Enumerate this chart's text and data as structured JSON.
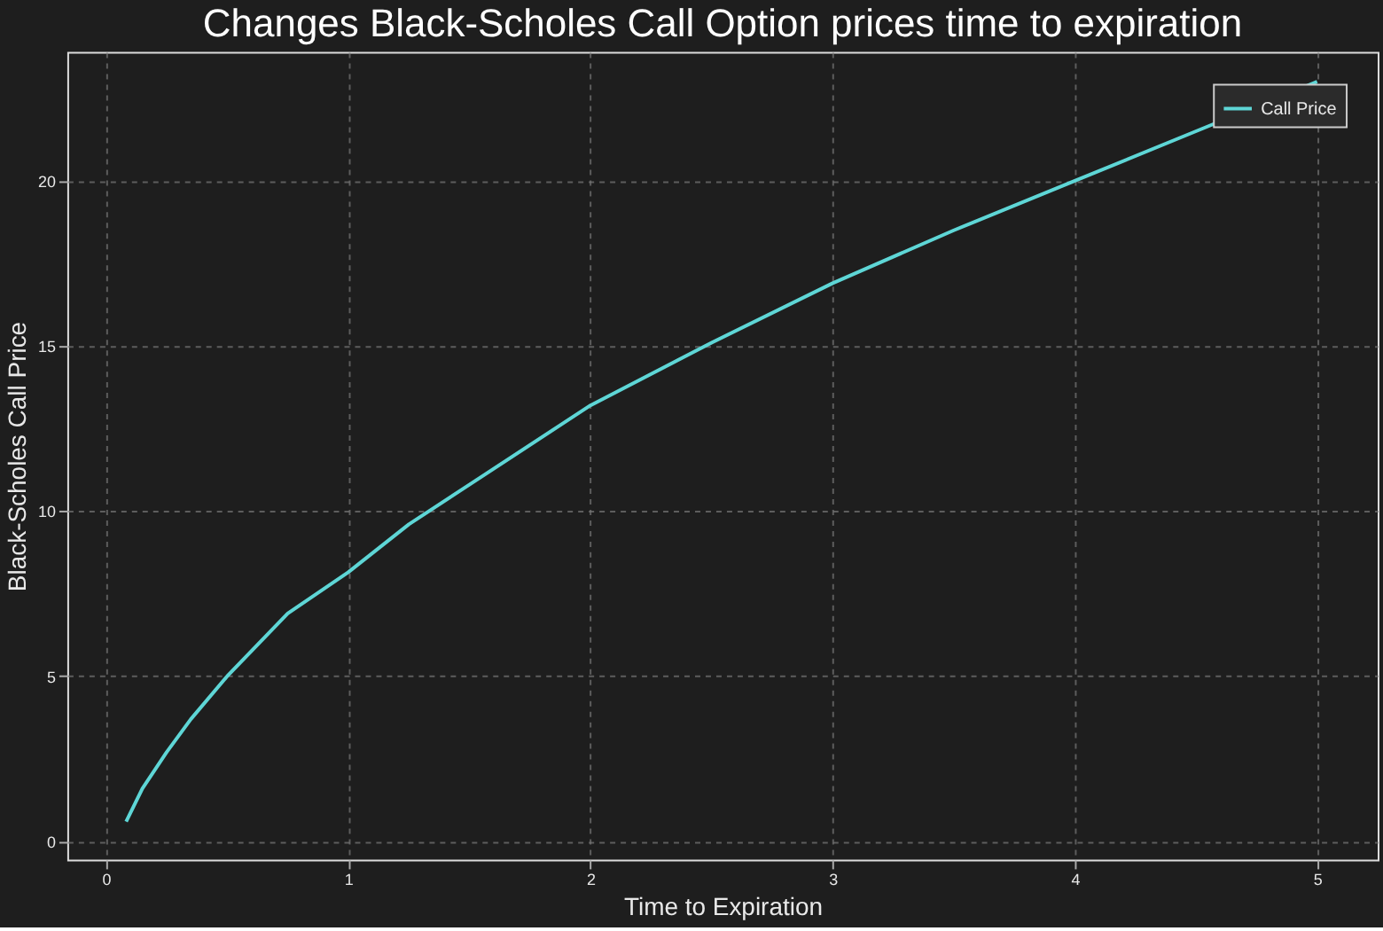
{
  "chart_data": {
    "type": "line",
    "title": "Changes Black-Scholes Call Option prices time to expiration",
    "xlabel": "Time to Expiration",
    "ylabel": "Black-Scholes Call Price",
    "x": [
      0.083,
      0.15,
      0.25,
      0.35,
      0.5,
      0.75,
      1,
      1.25,
      1.5,
      2,
      2.5,
      3,
      3.5,
      4,
      4.5,
      5
    ],
    "series": [
      {
        "name": "Call Price",
        "color": "#5ed6d6",
        "values": [
          0.6,
          1.6,
          2.7,
          3.7,
          5.0,
          6.9,
          8.15,
          9.6,
          10.8,
          13.2,
          15.1,
          16.9,
          18.5,
          20.0,
          21.5,
          23.0
        ]
      }
    ],
    "xlim": [
      -0.16,
      5.25
    ],
    "ylim": [
      -0.55,
      23.9
    ],
    "xticks": [
      0,
      1,
      2,
      3,
      4,
      5
    ],
    "yticks": [
      0,
      5,
      10,
      15,
      20
    ],
    "grid": true,
    "legend": "top right",
    "line_style": "solid",
    "marker": "none"
  }
}
